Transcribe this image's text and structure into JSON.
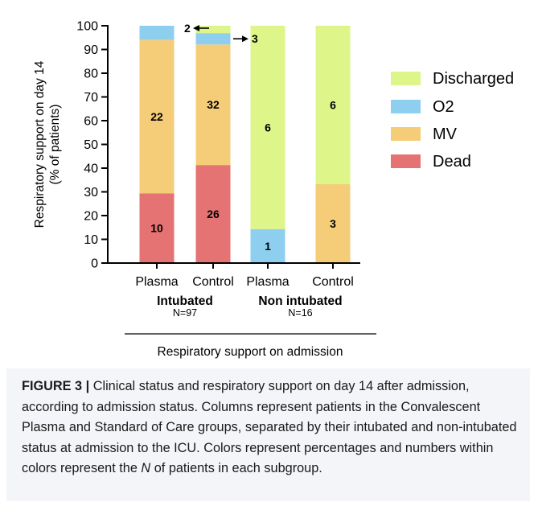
{
  "chart_data": {
    "type": "bar",
    "stacked": true,
    "categories": [
      "Plasma",
      "Control",
      "Plasma",
      "Control"
    ],
    "groups": [
      {
        "label": "Intubated",
        "n_label": "N=97"
      },
      {
        "label": "Non intubated",
        "n_label": "N=16"
      }
    ],
    "series": [
      {
        "name": "Dead",
        "color": "#e57373",
        "values": [
          29.4,
          41.3,
          0,
          0
        ],
        "counts": [
          10,
          26,
          null,
          null
        ]
      },
      {
        "name": "MV",
        "color": "#f5cd78",
        "values": [
          64.7,
          50.8,
          0,
          33.3
        ],
        "counts": [
          22,
          32,
          null,
          3
        ]
      },
      {
        "name": "O2",
        "color": "#8ecff0",
        "values": [
          5.9,
          4.8,
          14.3,
          0
        ],
        "counts": [
          2,
          3,
          1,
          null
        ]
      },
      {
        "name": "Discharged",
        "color": "#def58a",
        "values": [
          0,
          3.1,
          85.7,
          66.7
        ],
        "counts": [
          null,
          null,
          6,
          6
        ]
      }
    ],
    "annotations": [
      {
        "text": "2",
        "category_index": 0,
        "series": "O2"
      },
      {
        "text": "3",
        "category_index": 1,
        "series": "O2"
      }
    ],
    "legend_order": [
      "Discharged",
      "O2",
      "MV",
      "Dead"
    ],
    "legend_position": "right",
    "ylabel_lines": [
      "Respiratory support on day 14",
      "(% of patients)"
    ],
    "xlabel": "Respiratory support on admission",
    "ylim": [
      0,
      100
    ],
    "yticks": [
      0,
      10,
      20,
      30,
      40,
      50,
      60,
      70,
      80,
      90,
      100
    ],
    "grid": false
  },
  "caption": {
    "label": "FIGURE 3 |",
    "lead": " Clinical status and respiratory support on day 14 after admission, according to admission status. Columns represent patients in the Convalescent Plasma and Standard of Care groups, separated by their intubated and non-intubated status at admission to the ICU. Colors represent percentages and numbers within colors represent the ",
    "italic": "N",
    "tail": " of patients in each subgroup."
  }
}
